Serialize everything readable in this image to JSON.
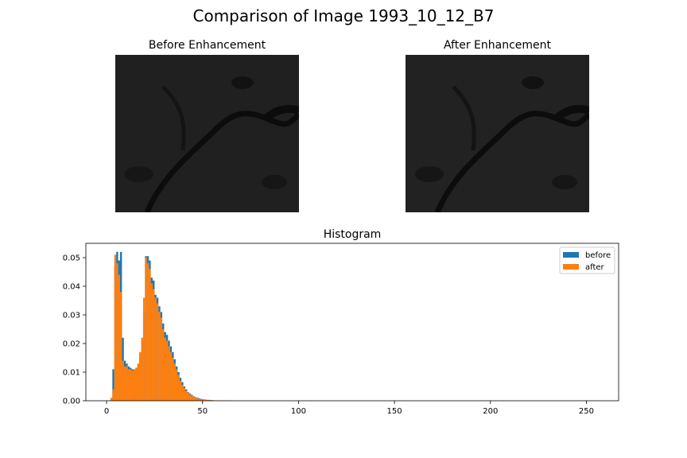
{
  "figure": {
    "title": "Comparison of Image 1993_10_12_B7"
  },
  "images": {
    "before_title": "Before Enhancement",
    "after_title": "After Enhancement"
  },
  "chart_data": [
    {
      "type": "bar",
      "title": "Histogram",
      "xlabel": "",
      "ylabel": "",
      "xlim": [
        -10.8,
        266.8
      ],
      "ylim": [
        0,
        0.055
      ],
      "xticks": [
        0,
        50,
        100,
        150,
        200,
        250
      ],
      "yticks": [
        0.0,
        0.01,
        0.02,
        0.03,
        0.04,
        0.05
      ],
      "ytick_labels": [
        "0.00",
        "0.01",
        "0.02",
        "0.03",
        "0.04",
        "0.05"
      ],
      "legend": {
        "placement": "top-right",
        "entries": [
          "before",
          "after"
        ]
      },
      "bin_width": 1,
      "x": [
        2,
        3,
        4,
        5,
        6,
        7,
        8,
        9,
        10,
        11,
        12,
        13,
        14,
        15,
        16,
        17,
        18,
        19,
        20,
        21,
        22,
        23,
        24,
        25,
        26,
        27,
        28,
        29,
        30,
        31,
        32,
        33,
        34,
        35,
        36,
        37,
        38,
        39,
        40,
        41,
        42,
        43,
        44,
        45,
        46,
        47,
        48,
        49,
        50,
        51,
        52,
        53,
        54,
        55,
        56,
        57,
        58,
        59,
        60,
        61,
        62,
        63,
        64
      ],
      "series": [
        {
          "name": "before",
          "color": "#1f77b4",
          "values": [
            0.001,
            0.011,
            0.047,
            0.052,
            0.049,
            0.052,
            0.022,
            0.014,
            0.013,
            0.012,
            0.0115,
            0.011,
            0.011,
            0.0115,
            0.012,
            0.016,
            0.021,
            0.031,
            0.0505,
            0.0505,
            0.049,
            0.043,
            0.042,
            0.037,
            0.036,
            0.033,
            0.031,
            0.027,
            0.024,
            0.023,
            0.021,
            0.019,
            0.017,
            0.0145,
            0.012,
            0.01,
            0.008,
            0.0065,
            0.005,
            0.004,
            0.003,
            0.0025,
            0.002,
            0.0015,
            0.0012,
            0.001,
            0.0008,
            0.0006,
            0.0005,
            0.0004,
            0.0003,
            0.0003,
            0.0002,
            0.0002,
            0.0001,
            0.0001,
            0.0001,
            0.0001,
            0.0001,
            0.0001,
            5e-05,
            5e-05,
            5e-05
          ]
        },
        {
          "name": "after",
          "color": "#ff7f0e",
          "values": [
            0.001,
            0.004,
            0.051,
            0.048,
            0.044,
            0.038,
            0.014,
            0.012,
            0.012,
            0.011,
            0.011,
            0.0105,
            0.011,
            0.0115,
            0.013,
            0.017,
            0.022,
            0.036,
            0.05,
            0.048,
            0.046,
            0.041,
            0.039,
            0.036,
            0.034,
            0.031,
            0.029,
            0.025,
            0.022,
            0.021,
            0.019,
            0.017,
            0.015,
            0.013,
            0.011,
            0.009,
            0.007,
            0.0055,
            0.0045,
            0.0035,
            0.0028,
            0.0022,
            0.0017,
            0.0013,
            0.001,
            0.0008,
            0.0006,
            0.0005,
            0.0004,
            0.0003,
            0.0003,
            0.0002,
            0.0002,
            0.0001,
            0.0001,
            0.0001,
            0.0001,
            0.0001,
            0.0001,
            5e-05,
            5e-05,
            5e-05,
            5e-05
          ]
        }
      ]
    }
  ]
}
